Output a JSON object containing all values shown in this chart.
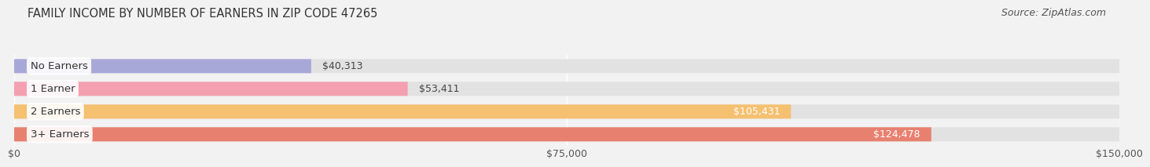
{
  "title": "FAMILY INCOME BY NUMBER OF EARNERS IN ZIP CODE 47265",
  "source": "Source: ZipAtlas.com",
  "categories": [
    "No Earners",
    "1 Earner",
    "2 Earners",
    "3+ Earners"
  ],
  "values": [
    40313,
    53411,
    105431,
    124478
  ],
  "bar_colors": [
    "#a8a8d8",
    "#f4a0b0",
    "#f5c070",
    "#e88070"
  ],
  "label_colors": [
    "#444444",
    "#444444",
    "#ffffff",
    "#ffffff"
  ],
  "xlim": [
    0,
    150000
  ],
  "xtick_values": [
    0,
    75000,
    150000
  ],
  "xtick_labels": [
    "$0",
    "$75,000",
    "$150,000"
  ],
  "background_color": "#f2f2f2",
  "bar_bg_color": "#e2e2e2",
  "title_fontsize": 10.5,
  "source_fontsize": 9,
  "bar_label_fontsize": 9,
  "category_fontsize": 9.5
}
